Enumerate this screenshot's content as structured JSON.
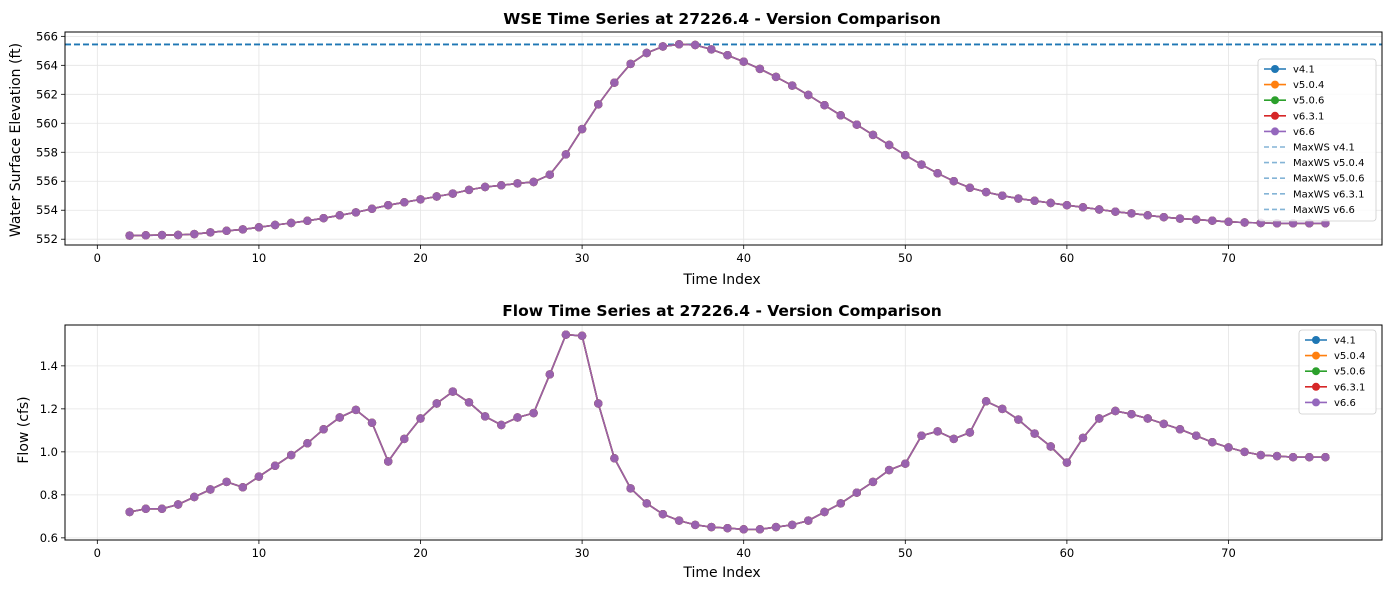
{
  "chart_data": [
    {
      "type": "line",
      "title": "WSE Time Series at 27226.4 - Version Comparison",
      "xlabel": "Time Index",
      "ylabel": "Water Surface Elevation (ft)",
      "xlim": [
        -2,
        79.5
      ],
      "ylim": [
        551.6,
        566.3
      ],
      "xticks": [
        0,
        10,
        20,
        30,
        40,
        50,
        60,
        70
      ],
      "yticks": [
        552,
        554,
        556,
        558,
        560,
        562,
        564,
        566
      ],
      "grid": true,
      "legend_position": "center-right",
      "x": [
        2,
        3,
        4,
        5,
        6,
        7,
        8,
        9,
        10,
        11,
        12,
        13,
        14,
        15,
        16,
        17,
        18,
        19,
        20,
        21,
        22,
        23,
        24,
        25,
        26,
        27,
        28,
        29,
        30,
        31,
        32,
        33,
        34,
        35,
        36,
        37,
        38,
        39,
        40,
        41,
        42,
        43,
        44,
        45,
        46,
        47,
        48,
        49,
        50,
        51,
        52,
        53,
        54,
        55,
        56,
        57,
        58,
        59,
        60,
        61,
        62,
        63,
        64,
        65,
        66,
        67,
        68,
        69,
        70,
        71,
        72,
        73,
        74,
        75,
        76
      ],
      "y": [
        552.25,
        552.27,
        552.28,
        552.29,
        552.35,
        552.47,
        552.58,
        552.68,
        552.82,
        552.98,
        553.12,
        553.27,
        553.45,
        553.65,
        553.85,
        554.1,
        554.35,
        554.55,
        554.75,
        554.95,
        555.15,
        555.4,
        555.6,
        555.72,
        555.85,
        555.95,
        556.45,
        557.85,
        559.6,
        561.3,
        562.8,
        564.1,
        564.85,
        565.3,
        565.45,
        565.4,
        565.1,
        564.7,
        564.25,
        563.75,
        563.2,
        562.6,
        561.95,
        561.25,
        560.55,
        559.9,
        559.2,
        558.5,
        557.8,
        557.15,
        556.55,
        556.0,
        555.55,
        555.25,
        555.0,
        554.8,
        554.65,
        554.5,
        554.35,
        554.2,
        554.05,
        553.9,
        553.78,
        553.65,
        553.52,
        553.42,
        553.35,
        553.28,
        553.2,
        553.15,
        553.12,
        553.1,
        553.1,
        553.1,
        553.1
      ],
      "series": [
        {
          "name": "v4.1",
          "color": "#1f77b4"
        },
        {
          "name": "v5.0.4",
          "color": "#ff7f0e"
        },
        {
          "name": "v5.0.6",
          "color": "#2ca02c"
        },
        {
          "name": "v6.3.1",
          "color": "#d62728"
        },
        {
          "name": "v6.6",
          "color": "#9467bd"
        }
      ],
      "maxws_value": 565.45,
      "maxws_color": "#1f77b4",
      "maxws_legend": [
        "MaxWS v4.1",
        "MaxWS v5.0.4",
        "MaxWS v5.0.6",
        "MaxWS v6.3.1",
        "MaxWS v6.6"
      ]
    },
    {
      "type": "line",
      "title": "Flow Time Series at 27226.4 - Version Comparison",
      "xlabel": "Time Index",
      "ylabel": "Flow (cfs)",
      "xlim": [
        -2,
        79.5
      ],
      "ylim": [
        0.59,
        1.59
      ],
      "xticks": [
        0,
        10,
        20,
        30,
        40,
        50,
        60,
        70
      ],
      "yticks": [
        0.6,
        0.8,
        1.0,
        1.2,
        1.4
      ],
      "ytick_labels": [
        "0.6",
        "0.8",
        "1.0",
        "1.2",
        "1.4"
      ],
      "grid": true,
      "legend_position": "upper-right",
      "x": [
        2,
        3,
        4,
        5,
        6,
        7,
        8,
        9,
        10,
        11,
        12,
        13,
        14,
        15,
        16,
        17,
        18,
        19,
        20,
        21,
        22,
        23,
        24,
        25,
        26,
        27,
        28,
        29,
        30,
        31,
        32,
        33,
        34,
        35,
        36,
        37,
        38,
        39,
        40,
        41,
        42,
        43,
        44,
        45,
        46,
        47,
        48,
        49,
        50,
        51,
        52,
        53,
        54,
        55,
        56,
        57,
        58,
        59,
        60,
        61,
        62,
        63,
        64,
        65,
        66,
        67,
        68,
        69,
        70,
        71,
        72,
        73,
        74,
        75,
        76
      ],
      "y": [
        0.72,
        0.735,
        0.735,
        0.755,
        0.79,
        0.825,
        0.86,
        0.835,
        0.885,
        0.935,
        0.985,
        1.04,
        1.105,
        1.16,
        1.195,
        1.135,
        0.955,
        1.06,
        1.155,
        1.225,
        1.28,
        1.23,
        1.165,
        1.125,
        1.16,
        1.18,
        1.36,
        1.545,
        1.54,
        1.225,
        0.97,
        0.83,
        0.76,
        0.71,
        0.68,
        0.66,
        0.65,
        0.645,
        0.64,
        0.64,
        0.65,
        0.66,
        0.68,
        0.72,
        0.76,
        0.81,
        0.86,
        0.915,
        0.945,
        1.075,
        1.095,
        1.06,
        1.09,
        1.235,
        1.2,
        1.15,
        1.085,
        1.025,
        0.95,
        1.065,
        1.155,
        1.19,
        1.175,
        1.155,
        1.13,
        1.105,
        1.075,
        1.045,
        1.02,
        1.0,
        0.985,
        0.98,
        0.975,
        0.975,
        0.975
      ],
      "series": [
        {
          "name": "v4.1",
          "color": "#1f77b4"
        },
        {
          "name": "v5.0.4",
          "color": "#ff7f0e"
        },
        {
          "name": "v5.0.6",
          "color": "#2ca02c"
        },
        {
          "name": "v6.3.1",
          "color": "#d62728"
        },
        {
          "name": "v6.6",
          "color": "#9467bd"
        }
      ]
    }
  ]
}
